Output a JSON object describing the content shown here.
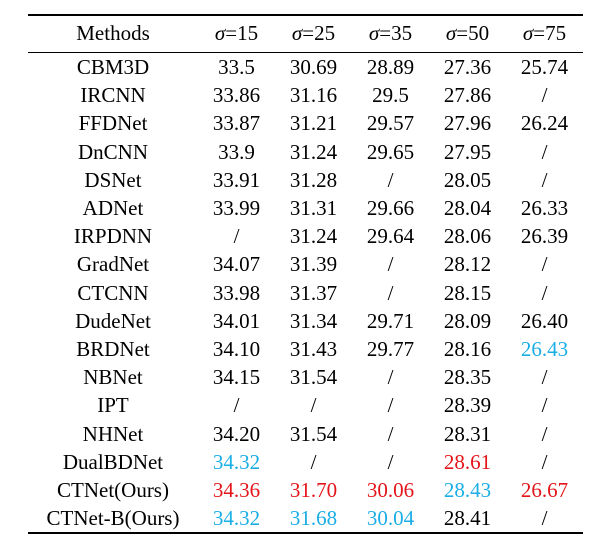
{
  "colors": {
    "best": "#e3151a",
    "second": "#1aaee6"
  },
  "table": {
    "header": {
      "methods": "Methods",
      "sigma_symbol": "σ",
      "noise_levels": [
        "=15",
        "=25",
        "=35",
        "=50",
        "=75"
      ]
    },
    "rows": [
      {
        "method": "CBM3D",
        "values": [
          "33.5",
          "30.69",
          "28.89",
          "27.36",
          "25.74"
        ],
        "marks": [
          "",
          "",
          "",
          "",
          ""
        ]
      },
      {
        "method": "IRCNN",
        "values": [
          "33.86",
          "31.16",
          "29.5",
          "27.86",
          "/"
        ],
        "marks": [
          "",
          "",
          "",
          "",
          ""
        ]
      },
      {
        "method": "FFDNet",
        "values": [
          "33.87",
          "31.21",
          "29.57",
          "27.96",
          "26.24"
        ],
        "marks": [
          "",
          "",
          "",
          "",
          ""
        ]
      },
      {
        "method": "DnCNN",
        "values": [
          "33.9",
          "31.24",
          "29.65",
          "27.95",
          "/"
        ],
        "marks": [
          "",
          "",
          "",
          "",
          ""
        ]
      },
      {
        "method": "DSNet",
        "values": [
          "33.91",
          "31.28",
          "/",
          "28.05",
          "/"
        ],
        "marks": [
          "",
          "",
          "",
          "",
          ""
        ]
      },
      {
        "method": "ADNet",
        "values": [
          "33.99",
          "31.31",
          "29.66",
          "28.04",
          "26.33"
        ],
        "marks": [
          "",
          "",
          "",
          "",
          ""
        ]
      },
      {
        "method": "IRPDNN",
        "values": [
          "/",
          "31.24",
          "29.64",
          "28.06",
          "26.39"
        ],
        "marks": [
          "",
          "",
          "",
          "",
          ""
        ]
      },
      {
        "method": "GradNet",
        "values": [
          "34.07",
          "31.39",
          "/",
          "28.12",
          "/"
        ],
        "marks": [
          "",
          "",
          "",
          "",
          ""
        ]
      },
      {
        "method": "CTCNN",
        "values": [
          "33.98",
          "31.37",
          "/",
          "28.15",
          "/"
        ],
        "marks": [
          "",
          "",
          "",
          "",
          ""
        ]
      },
      {
        "method": "DudeNet",
        "values": [
          "34.01",
          "31.34",
          "29.71",
          "28.09",
          "26.40"
        ],
        "marks": [
          "",
          "",
          "",
          "",
          ""
        ]
      },
      {
        "method": "BRDNet",
        "values": [
          "34.10",
          "31.43",
          "29.77",
          "28.16",
          "26.43"
        ],
        "marks": [
          "",
          "",
          "",
          "",
          "second"
        ]
      },
      {
        "method": "NBNet",
        "values": [
          "34.15",
          "31.54",
          "/",
          "28.35",
          "/"
        ],
        "marks": [
          "",
          "",
          "",
          "",
          ""
        ]
      },
      {
        "method": "IPT",
        "values": [
          "/",
          "/",
          "/",
          "28.39",
          "/"
        ],
        "marks": [
          "",
          "",
          "",
          "",
          ""
        ]
      },
      {
        "method": "NHNet",
        "values": [
          "34.20",
          "31.54",
          "/",
          "28.31",
          "/"
        ],
        "marks": [
          "",
          "",
          "",
          "",
          ""
        ]
      },
      {
        "method": "DualBDNet",
        "values": [
          "34.32",
          "/",
          "/",
          "28.61",
          "/"
        ],
        "marks": [
          "second",
          "",
          "",
          "best",
          ""
        ]
      },
      {
        "method": "CTNet(Ours)",
        "values": [
          "34.36",
          "31.70",
          "30.06",
          "28.43",
          "26.67"
        ],
        "marks": [
          "best",
          "best",
          "best",
          "second",
          "best"
        ]
      },
      {
        "method": "CTNet-B(Ours)",
        "values": [
          "34.32",
          "31.68",
          "30.04",
          "28.41",
          "/"
        ],
        "marks": [
          "second",
          "second",
          "second",
          "",
          ""
        ]
      }
    ]
  }
}
